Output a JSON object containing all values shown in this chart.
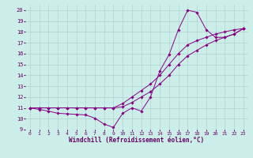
{
  "xlabel": "Windchill (Refroidissement éolien,°C)",
  "bg_color": "#cceee8",
  "line_color": "#880088",
  "grid_color": "#aacccc",
  "xlim": [
    -0.5,
    23.5
  ],
  "ylim": [
    9,
    20.5
  ],
  "yticks": [
    9,
    10,
    11,
    12,
    13,
    14,
    15,
    16,
    17,
    18,
    19,
    20
  ],
  "xticks": [
    0,
    1,
    2,
    3,
    4,
    5,
    6,
    7,
    8,
    9,
    10,
    11,
    12,
    13,
    14,
    15,
    16,
    17,
    18,
    19,
    20,
    21,
    22,
    23
  ],
  "series": [
    {
      "x": [
        0,
        1,
        2,
        3,
        4,
        5,
        6,
        7,
        8,
        9,
        10,
        11,
        12,
        13,
        14,
        15,
        16,
        17,
        18,
        19,
        20,
        21,
        22,
        23
      ],
      "y": [
        11,
        10.85,
        10.7,
        10.5,
        10.45,
        10.4,
        10.35,
        10.05,
        9.5,
        9.2,
        10.5,
        11.0,
        10.7,
        12.0,
        14.4,
        15.9,
        18.2,
        20.0,
        19.8,
        18.2,
        17.5,
        17.5,
        17.8,
        18.3
      ]
    },
    {
      "x": [
        0,
        1,
        2,
        3,
        4,
        5,
        6,
        7,
        8,
        9,
        10,
        11,
        12,
        13,
        14,
        15,
        16,
        17,
        18,
        19,
        20,
        21,
        22,
        23
      ],
      "y": [
        11,
        11,
        11,
        11,
        11,
        11,
        11,
        11,
        11,
        11,
        11.4,
        12.0,
        12.6,
        13.2,
        14.0,
        15.0,
        16.0,
        16.8,
        17.2,
        17.5,
        17.8,
        18.0,
        18.2,
        18.3
      ]
    },
    {
      "x": [
        0,
        1,
        2,
        3,
        4,
        5,
        6,
        7,
        8,
        9,
        10,
        11,
        12,
        13,
        14,
        15,
        16,
        17,
        18,
        19,
        20,
        21,
        22,
        23
      ],
      "y": [
        11,
        11,
        11,
        11,
        11,
        11,
        11,
        11,
        11,
        11,
        11.1,
        11.5,
        12.0,
        12.5,
        13.2,
        14.0,
        15.0,
        15.8,
        16.3,
        16.8,
        17.2,
        17.5,
        17.8,
        18.3
      ]
    }
  ]
}
